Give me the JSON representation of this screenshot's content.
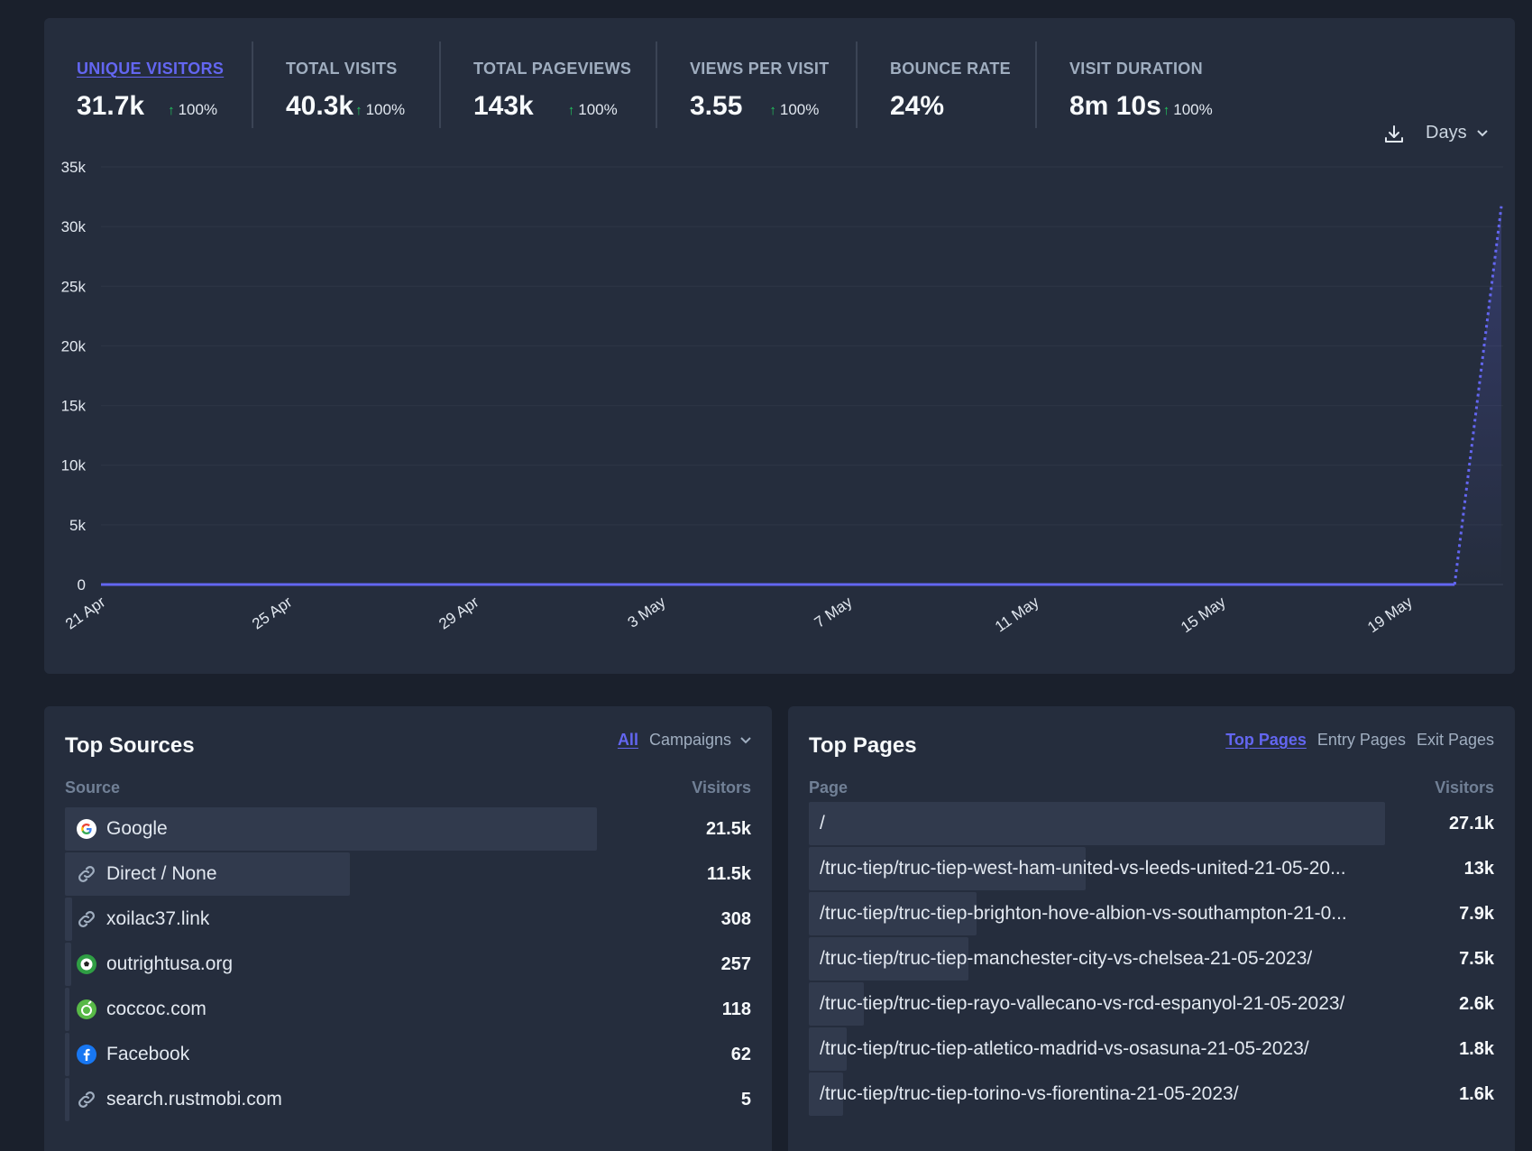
{
  "stats": [
    {
      "label": "UNIQUE VISITORS",
      "value": "31.7k",
      "change": "100%"
    },
    {
      "label": "TOTAL VISITS",
      "value": "40.3k",
      "change": "100%"
    },
    {
      "label": "TOTAL PAGEVIEWS",
      "value": "143k",
      "change": "100%"
    },
    {
      "label": "VIEWS PER VISIT",
      "value": "3.55",
      "change": "100%"
    },
    {
      "label": "BOUNCE RATE",
      "value": "24%",
      "change": ""
    },
    {
      "label": "VISIT DURATION",
      "value": "8m 10s",
      "change": "100%"
    }
  ],
  "controls": {
    "interval_label": "Days",
    "download_icon": "download-icon",
    "chevron_icon": "chevron-down-icon"
  },
  "chart_data": {
    "type": "line",
    "series": [
      {
        "values": [
          0,
          0,
          0,
          0,
          0,
          0,
          0,
          0,
          0,
          0,
          0,
          0,
          0,
          0,
          0,
          0,
          0,
          0,
          0,
          0,
          0,
          0,
          0,
          0,
          0,
          0,
          0,
          0,
          0,
          0,
          31700
        ]
      }
    ],
    "x": [
      "21 Apr",
      "22 Apr",
      "23 Apr",
      "24 Apr",
      "25 Apr",
      "26 Apr",
      "27 Apr",
      "28 Apr",
      "29 Apr",
      "30 Apr",
      "1 May",
      "2 May",
      "3 May",
      "4 May",
      "5 May",
      "6 May",
      "7 May",
      "8 May",
      "9 May",
      "10 May",
      "11 May",
      "12 May",
      "13 May",
      "14 May",
      "15 May",
      "16 May",
      "17 May",
      "18 May",
      "19 May",
      "20 May",
      "21 May"
    ],
    "xtick_labels": [
      "21 Apr",
      "25 Apr",
      "29 Apr",
      "3 May",
      "7 May",
      "11 May",
      "15 May",
      "19 May"
    ],
    "ytick_labels": [
      "0",
      "5k",
      "10k",
      "15k",
      "20k",
      "25k",
      "30k",
      "35k"
    ],
    "ylim": [
      0,
      35000
    ],
    "last_segment_dotted": true,
    "grid": true,
    "color": "#6366f1"
  },
  "sources": {
    "title": "Top Sources",
    "tabs": {
      "all": "All",
      "campaigns": "Campaigns"
    },
    "col_source": "Source",
    "col_visitors": "Visitors",
    "max": 21500,
    "items": [
      {
        "name": "Google",
        "visitors": "21.5k",
        "count": 21500,
        "icon": "google-icon"
      },
      {
        "name": "Direct / None",
        "visitors": "11.5k",
        "count": 11500,
        "icon": "link-icon"
      },
      {
        "name": "xoilac37.link",
        "visitors": "308",
        "count": 308,
        "icon": "link-icon"
      },
      {
        "name": "outrightusa.org",
        "visitors": "257",
        "count": 257,
        "icon": "soccer-ball-icon"
      },
      {
        "name": "coccoc.com",
        "visitors": "118",
        "count": 118,
        "icon": "coccoc-icon"
      },
      {
        "name": "Facebook",
        "visitors": "62",
        "count": 62,
        "icon": "facebook-icon"
      },
      {
        "name": "search.rustmobi.com",
        "visitors": "5",
        "count": 5,
        "icon": "link-icon"
      }
    ]
  },
  "pages": {
    "title": "Top Pages",
    "tabs": {
      "top": "Top Pages",
      "entry": "Entry Pages",
      "exit": "Exit Pages"
    },
    "col_page": "Page",
    "col_visitors": "Visitors",
    "max": 27100,
    "items": [
      {
        "path": "/",
        "visitors": "27.1k",
        "count": 27100
      },
      {
        "path": "/truc-tiep/truc-tiep-west-ham-united-vs-leeds-united-21-05-20...",
        "visitors": "13k",
        "count": 13000
      },
      {
        "path": "/truc-tiep/truc-tiep-brighton-hove-albion-vs-southampton-21-0...",
        "visitors": "7.9k",
        "count": 7900
      },
      {
        "path": "/truc-tiep/truc-tiep-manchester-city-vs-chelsea-21-05-2023/",
        "visitors": "7.5k",
        "count": 7500
      },
      {
        "path": "/truc-tiep/truc-tiep-rayo-vallecano-vs-rcd-espanyol-21-05-2023/",
        "visitors": "2.6k",
        "count": 2600
      },
      {
        "path": "/truc-tiep/truc-tiep-atletico-madrid-vs-osasuna-21-05-2023/",
        "visitors": "1.8k",
        "count": 1800
      },
      {
        "path": "/truc-tiep/truc-tiep-torino-vs-fiorentina-21-05-2023/",
        "visitors": "1.6k",
        "count": 1600
      }
    ]
  }
}
